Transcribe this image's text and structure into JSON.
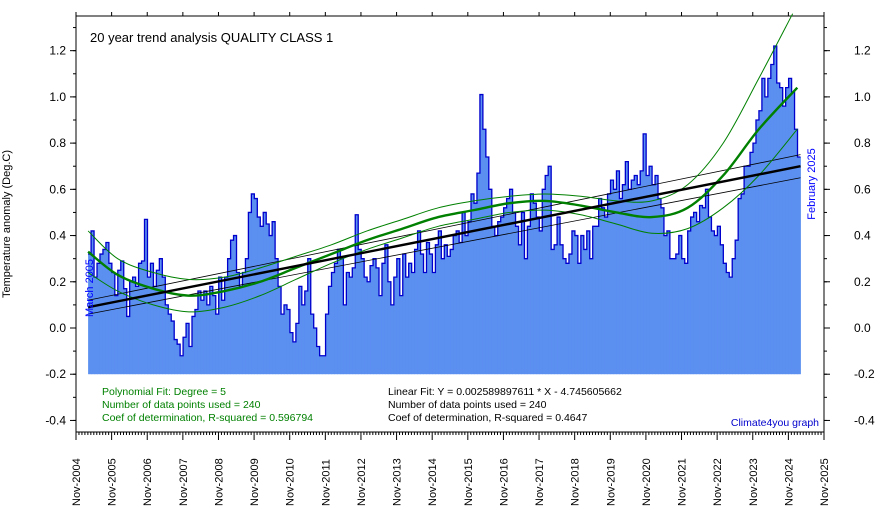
{
  "chart_data": {
    "type": "bar",
    "title": "20 year trend analysis QUALITY CLASS 1",
    "ylabel": "Temperature anomaly (Deg.C)",
    "xlabel": "",
    "ylim": [
      -0.45,
      1.35
    ],
    "xlim": [
      2004.83,
      2025.83
    ],
    "y_ticks": [
      "1.2",
      "1.0",
      "0.8",
      "0.6",
      "0.4",
      "0.2",
      "0.0",
      "-0.2",
      "-0.4"
    ],
    "y_tick_values": [
      1.2,
      1.0,
      0.8,
      0.6,
      0.4,
      0.2,
      0.0,
      -0.2,
      -0.4
    ],
    "x_ticks": [
      "Nov-2004",
      "Nov-2005",
      "Nov-2006",
      "Nov-2007",
      "Nov-2008",
      "Nov-2009",
      "Nov-2010",
      "Nov-2011",
      "Nov-2012",
      "Nov-2013",
      "Nov-2014",
      "Nov-2015",
      "Nov-2016",
      "Nov-2017",
      "Nov-2018",
      "Nov-2019",
      "Nov-2020",
      "Nov-2021",
      "Nov-2022",
      "Nov-2023",
      "Nov-2024",
      "Nov-2025"
    ],
    "bar_baseline": -0.2,
    "start_label": "March 2005",
    "end_label": "February 2025",
    "start_year": 2005.17,
    "monthly_anomalies": [
      0.32,
      0.42,
      0.22,
      0.28,
      0.32,
      0.34,
      0.37,
      0.28,
      0.24,
      0.14,
      0.25,
      0.29,
      0.17,
      0.05,
      0.2,
      0.22,
      0.18,
      0.28,
      0.29,
      0.47,
      0.22,
      0.28,
      0.18,
      0.25,
      0.3,
      0.22,
      0.1,
      0.06,
      0.03,
      -0.05,
      -0.07,
      -0.12,
      -0.04,
      0.02,
      -0.08,
      0.05,
      0.08,
      0.16,
      0.12,
      0.16,
      0.1,
      0.18,
      0.14,
      0.06,
      0.22,
      0.12,
      0.22,
      0.3,
      0.38,
      0.4,
      0.24,
      0.18,
      0.24,
      0.3,
      0.5,
      0.58,
      0.56,
      0.48,
      0.44,
      0.5,
      0.45,
      0.4,
      0.46,
      0.3,
      0.18,
      0.06,
      0.1,
      0.08,
      -0.02,
      -0.06,
      0.02,
      0.18,
      0.1,
      0.16,
      0.3,
      0.06,
      0.0,
      -0.08,
      -0.12,
      -0.12,
      0.06,
      0.18,
      0.24,
      0.28,
      0.34,
      0.3,
      0.1,
      0.24,
      0.22,
      0.26,
      0.49,
      0.34,
      0.3,
      0.22,
      0.2,
      0.27,
      0.3,
      0.26,
      0.14,
      0.28,
      0.36,
      0.2,
      0.1,
      0.22,
      0.3,
      0.14,
      0.32,
      0.22,
      0.28,
      0.24,
      0.34,
      0.42,
      0.32,
      0.24,
      0.37,
      0.32,
      0.24,
      0.36,
      0.42,
      0.3,
      0.36,
      0.31,
      0.34,
      0.4,
      0.42,
      0.37,
      0.5,
      0.4,
      0.46,
      0.58,
      0.54,
      0.67,
      1.01,
      0.86,
      0.74,
      0.6,
      0.44,
      0.4,
      0.46,
      0.48,
      0.52,
      0.56,
      0.6,
      0.5,
      0.44,
      0.36,
      0.5,
      0.3,
      0.44,
      0.58,
      0.54,
      0.48,
      0.42,
      0.6,
      0.66,
      0.7,
      0.34,
      0.36,
      0.48,
      0.36,
      0.3,
      0.28,
      0.32,
      0.42,
      0.4,
      0.28,
      0.4,
      0.34,
      0.42,
      0.3,
      0.44,
      0.44,
      0.56,
      0.52,
      0.48,
      0.58,
      0.64,
      0.6,
      0.68,
      0.56,
      0.62,
      0.72,
      0.6,
      0.64,
      0.66,
      0.62,
      0.68,
      0.84,
      0.66,
      0.7,
      0.62,
      0.66,
      0.56,
      0.52,
      0.4,
      0.42,
      0.3,
      0.3,
      0.32,
      0.4,
      0.3,
      0.28,
      0.42,
      0.48,
      0.5,
      0.46,
      0.53,
      0.52,
      0.6,
      0.48,
      0.42,
      0.4,
      0.44,
      0.36,
      0.28,
      0.24,
      0.22,
      0.3,
      0.38,
      0.56,
      0.58,
      0.7,
      0.7,
      0.76,
      0.8,
      0.9,
      0.94,
      1.08,
      1.0,
      1.08,
      1.14,
      1.22,
      1.06,
      1.04,
      0.96,
      1.04,
      1.08,
      1.02,
      0.86,
      0.74
    ],
    "fits": {
      "linear": {
        "label": "Linear Fit: Y = 0.00258989761¹ * X - 4.745605662",
        "equation": "Linear Fit: Y = 0.002589897611 * X - 4.745605662",
        "n_label": "Number of data points used = 240",
        "r2_label": "Coef of determination, R-squared = 0.4647",
        "y_start": 0.09,
        "y_end": 0.7,
        "band_start": [
          0.06,
          0.12
        ],
        "band_end": [
          0.65,
          0.75
        ],
        "color": "#000000"
      },
      "polynomial": {
        "label": "Polynomial Fit:   Degree = 5",
        "n_label": "Number of data points used = 240",
        "r2_label": "Coef of determination, R-squared =  0.596794",
        "color": "#008000",
        "curve": [
          [
            2005.17,
            0.33
          ],
          [
            2006.0,
            0.23
          ],
          [
            2007.0,
            0.17
          ],
          [
            2008.0,
            0.14
          ],
          [
            2009.0,
            0.16
          ],
          [
            2010.0,
            0.2
          ],
          [
            2011.0,
            0.26
          ],
          [
            2012.0,
            0.32
          ],
          [
            2013.0,
            0.38
          ],
          [
            2014.0,
            0.43
          ],
          [
            2015.0,
            0.48
          ],
          [
            2016.0,
            0.51
          ],
          [
            2017.0,
            0.54
          ],
          [
            2018.0,
            0.55
          ],
          [
            2019.0,
            0.53
          ],
          [
            2020.0,
            0.5
          ],
          [
            2021.0,
            0.48
          ],
          [
            2022.0,
            0.52
          ],
          [
            2023.0,
            0.66
          ],
          [
            2024.0,
            0.86
          ],
          [
            2025.08,
            1.04
          ]
        ],
        "upper": [
          [
            2005.17,
            0.42
          ],
          [
            2006.0,
            0.3
          ],
          [
            2007.0,
            0.24
          ],
          [
            2008.0,
            0.21
          ],
          [
            2009.0,
            0.22
          ],
          [
            2010.0,
            0.26
          ],
          [
            2011.0,
            0.31
          ],
          [
            2012.0,
            0.36
          ],
          [
            2013.0,
            0.42
          ],
          [
            2014.0,
            0.47
          ],
          [
            2015.0,
            0.52
          ],
          [
            2016.0,
            0.55
          ],
          [
            2017.0,
            0.57
          ],
          [
            2018.0,
            0.58
          ],
          [
            2019.0,
            0.57
          ],
          [
            2020.0,
            0.55
          ],
          [
            2021.0,
            0.55
          ],
          [
            2022.0,
            0.62
          ],
          [
            2023.0,
            0.8
          ],
          [
            2024.0,
            1.08
          ],
          [
            2024.95,
            1.36
          ]
        ],
        "lower": [
          [
            2005.17,
            0.24
          ],
          [
            2006.0,
            0.16
          ],
          [
            2007.0,
            0.1
          ],
          [
            2008.0,
            0.07
          ],
          [
            2009.0,
            0.09
          ],
          [
            2010.0,
            0.14
          ],
          [
            2011.0,
            0.21
          ],
          [
            2012.0,
            0.28
          ],
          [
            2013.0,
            0.34
          ],
          [
            2014.0,
            0.39
          ],
          [
            2015.0,
            0.44
          ],
          [
            2016.0,
            0.47
          ],
          [
            2017.0,
            0.5
          ],
          [
            2018.0,
            0.51
          ],
          [
            2019.0,
            0.49
          ],
          [
            2020.0,
            0.45
          ],
          [
            2021.0,
            0.41
          ],
          [
            2022.0,
            0.43
          ],
          [
            2023.0,
            0.52
          ],
          [
            2024.0,
            0.66
          ],
          [
            2025.08,
            0.86
          ]
        ]
      }
    },
    "credit": "Climate4you graph",
    "colors": {
      "bars": "#5b8ff0",
      "bar_edge": "#0000cc",
      "axis": "#000000",
      "date_label": "#0000ff"
    },
    "grid": false,
    "legend": "bottom"
  }
}
